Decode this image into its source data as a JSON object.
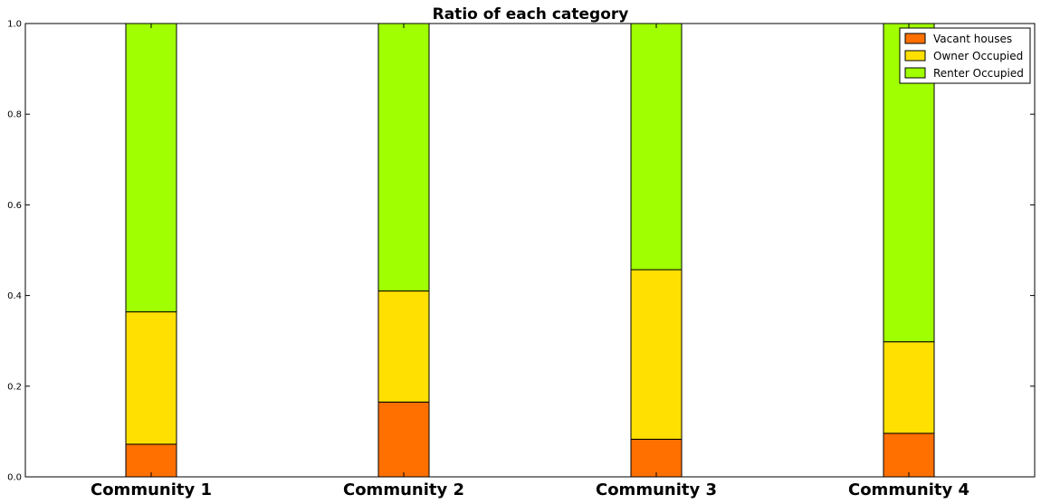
{
  "chart_data": {
    "type": "bar",
    "stacked": true,
    "title": "Ratio of each category",
    "xlabel": "",
    "ylabel": "",
    "categories": [
      "Community 1",
      "Community 2",
      "Community 3",
      "Community 4"
    ],
    "ylim": [
      0.0,
      1.0
    ],
    "yticks": [
      "0.0",
      "0.2",
      "0.4",
      "0.6",
      "0.8",
      "1.0"
    ],
    "grid": false,
    "legend_position": "top-right",
    "series": [
      {
        "name": "Vacant houses",
        "color": "#ff7000",
        "values": [
          0.072,
          0.165,
          0.083,
          0.096
        ]
      },
      {
        "name": "Owner Occupied",
        "color": "#ffe000",
        "values": [
          0.292,
          0.245,
          0.374,
          0.202
        ]
      },
      {
        "name": "Renter Occupied",
        "color": "#a0ff00",
        "values": [
          0.636,
          0.59,
          0.543,
          0.702
        ]
      }
    ]
  }
}
